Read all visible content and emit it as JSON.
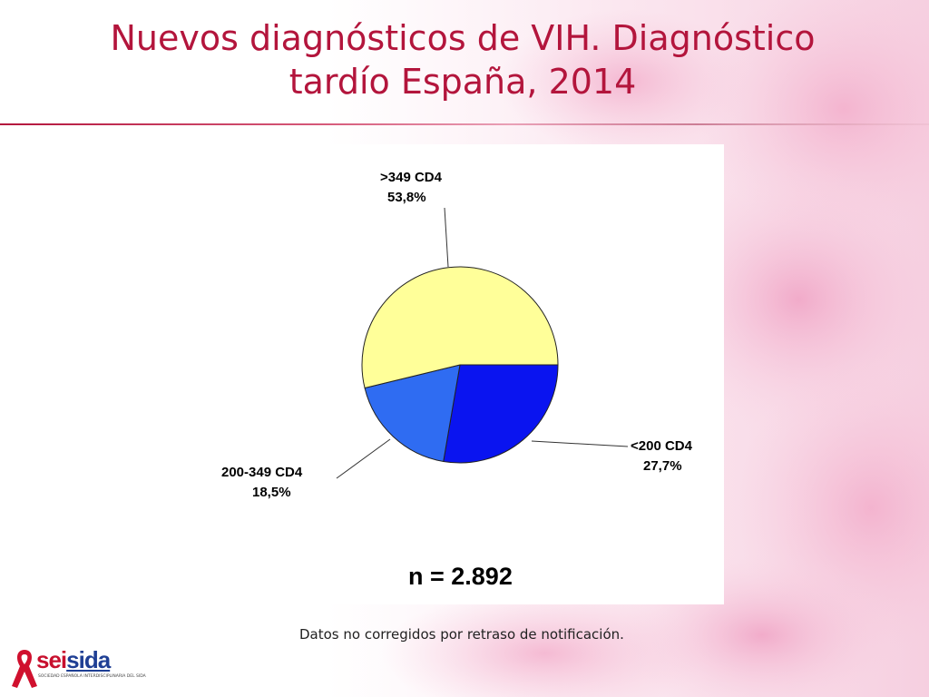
{
  "slide": {
    "title_line1": "Nuevos diagnósticos de VIH. Diagnóstico",
    "title_line2": "tardío España, 2014",
    "footnote": "Datos no corregidos por retraso de notificación.",
    "accent_color": "#b3153c"
  },
  "logo": {
    "name_part1": "sei",
    "name_part2": "sida",
    "subtitle": "SOCIEDAD ESPAÑOLA INTERDISCIPLINARIA DEL SIDA"
  },
  "chart_data": {
    "type": "pie",
    "slices": [
      {
        "label": "<200 CD4",
        "percent_label": "27,7%",
        "value": 27.7,
        "color": "#0a14f0"
      },
      {
        "label": "200-349 CD4",
        "percent_label": "18,5%",
        "value": 18.5,
        "color": "#2f6cf2"
      },
      {
        "label": ">349 CD4",
        "percent_label": "53,8%",
        "value": 53.8,
        "color": "#ffff99"
      }
    ],
    "annotation": "n = 2.892"
  }
}
